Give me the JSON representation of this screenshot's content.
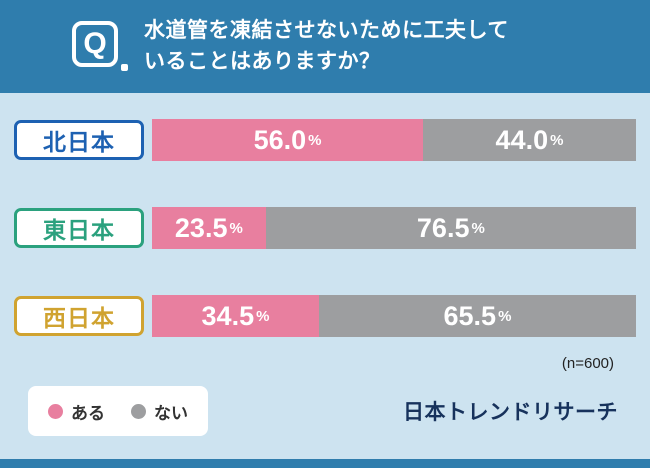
{
  "header": {
    "q_letter": "Q",
    "question_line1": "水道管を凍結させないために工夫して",
    "question_line2": "いることはありますか？",
    "bg_color": "#2f7dad"
  },
  "chart_data": {
    "type": "bar",
    "orientation": "horizontal",
    "stacked": true,
    "title": "水道管を凍結させないために工夫していることはありますか？",
    "categories": [
      "北日本",
      "東日本",
      "西日本"
    ],
    "series": [
      {
        "name": "ある",
        "color": "#e87f9f",
        "values": [
          56.0,
          23.5,
          34.5
        ]
      },
      {
        "name": "ない",
        "color": "#9d9ea0",
        "values": [
          44.0,
          76.5,
          65.5
        ]
      }
    ],
    "value_suffix": "%",
    "xlim": [
      0,
      100
    ],
    "sample_note": "(n=600)",
    "legend_position": "bottom-left"
  },
  "rows": [
    {
      "label": "北日本",
      "accent": "#1d61b2",
      "yes_value": "56.0",
      "no_value": "44.0"
    },
    {
      "label": "東日本",
      "accent": "#2ba17e",
      "yes_value": "23.5",
      "no_value": "76.5"
    },
    {
      "label": "西日本",
      "accent": "#d0a330",
      "yes_value": "34.5",
      "no_value": "65.5"
    }
  ],
  "legend": {
    "items": [
      {
        "label": "ある",
        "color": "#e87f9f"
      },
      {
        "label": "ない",
        "color": "#9d9ea0"
      }
    ]
  },
  "footer": {
    "sample_note": "(n=600)",
    "brand": "日本トレンドリサーチ"
  },
  "colors": {
    "page_bg": "#cde3f0",
    "header_bg": "#2f7dad",
    "yes": "#e87f9f",
    "no": "#9d9ea0",
    "brand": "#17325c"
  }
}
